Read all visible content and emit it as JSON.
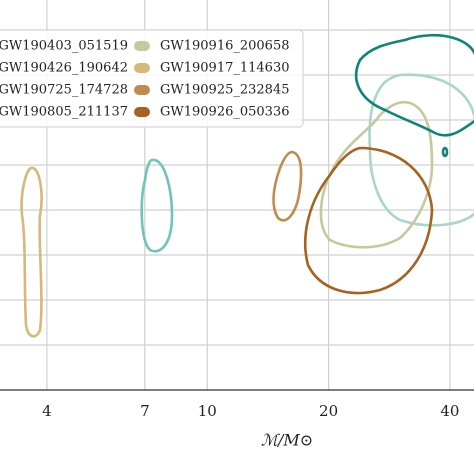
{
  "chart_data": {
    "type": "contour",
    "xlabel": "ℳ/M⊙",
    "xscale": "log",
    "xlim": [
      3.06,
      45.9
    ],
    "xticks": [
      4,
      7,
      10,
      20,
      40
    ],
    "grid": true,
    "legend": "upper left",
    "series": [
      {
        "name": "GW190403_051519",
        "color": "#0f8478"
      },
      {
        "name": "GW190426_190642",
        "color": "#6ec4b6"
      },
      {
        "name": "GW190725_174728",
        "color": "#a9d6c6"
      },
      {
        "name": "GW190805_211137",
        "color": "#8cbfa6"
      },
      {
        "name": "GW190916_200658",
        "color": "#c6c99c"
      },
      {
        "name": "GW190917_114630",
        "color": "#d6b878"
      },
      {
        "name": "GW190925_232845",
        "color": "#c08b4c"
      },
      {
        "name": "GW190926_050336",
        "color": "#a6621f"
      }
    ]
  }
}
